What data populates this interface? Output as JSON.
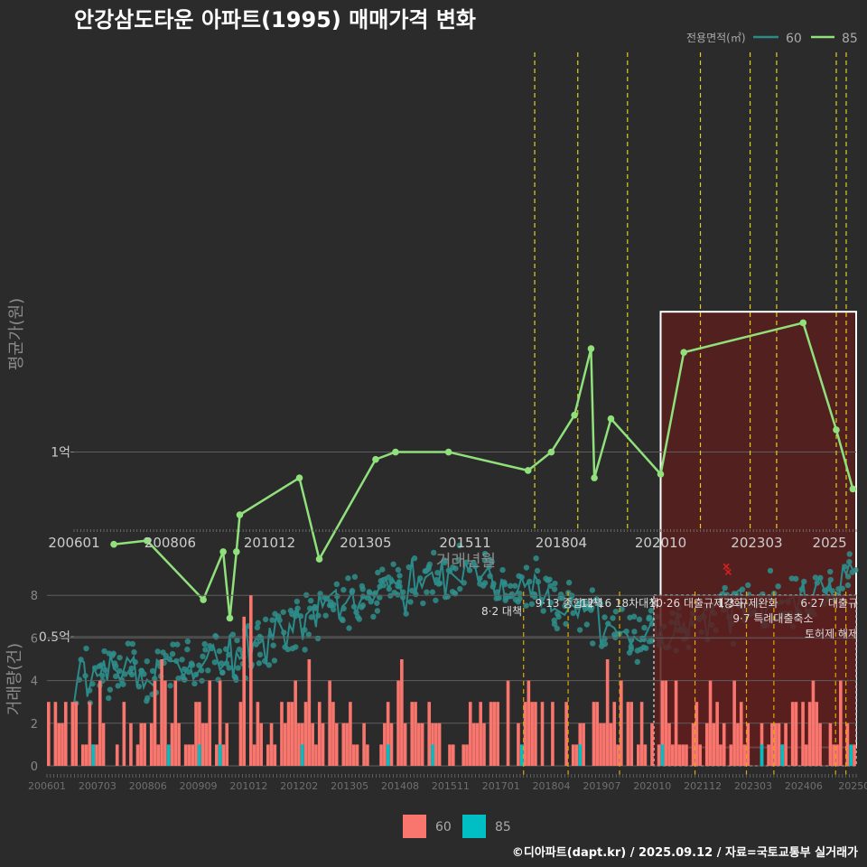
{
  "title": "안강삼도타운 아파트(1995) 매매가격 변화",
  "footer": "©디아파트(dapt.kr) / 2025.09.12 / 자료=국토교통부 실거래가",
  "colors": {
    "background": "#2b2b2b",
    "series60": "#2a8b8b",
    "series60_point": "#2f8f8c",
    "series85": "#90e07c",
    "bar60": "#f8766d",
    "bar85": "#00bfc4",
    "policy_line": "#e0d21a",
    "policy_line_bottom": "#e0a800",
    "highlight_fill": "#5a1e1e",
    "grid": "#5e5e5e"
  },
  "chart_data": [
    {
      "type": "line",
      "title": "안강삼도타운 아파트(1995) 매매가격 변화",
      "xlabel": "거래년월",
      "ylabel": "평균가(원)",
      "x_tick_labels": [
        "200601",
        "200806",
        "201012",
        "201305",
        "201511",
        "201804",
        "202010",
        "202303",
        "2025"
      ],
      "y_tick_labels": [
        "0.5억",
        "1억"
      ],
      "ylim": [
        1500,
        14000
      ],
      "xlim": [
        "2006-01",
        "2025-09"
      ],
      "legend": {
        "title": "전용면적(㎡)",
        "position": "top-right",
        "entries": [
          "60",
          "85"
        ]
      },
      "highlight_region": {
        "x_start": "2020-10",
        "x_end": "2025-09",
        "y_start": 2000,
        "y_end": 13800
      },
      "policy_dates": [
        "2017-08",
        "2018-09",
        "2019-12",
        "2021-10",
        "2023-01",
        "2023-09",
        "2025-03",
        "2025-06"
      ],
      "series": [
        {
          "name": "85",
          "x": [
            "2007-01",
            "2007-11",
            "2009-04",
            "2009-10",
            "2009-12",
            "2010-02",
            "2010-03",
            "2011-09",
            "2012-03",
            "2013-08",
            "2014-02",
            "2015-06",
            "2017-06",
            "2018-01",
            "2018-08",
            "2019-01",
            "2019-02",
            "2019-07",
            "2020-10",
            "2021-05",
            "2024-05",
            "2025-03",
            "2025-08"
          ],
          "values": [
            7500,
            7600,
            6000,
            7300,
            5500,
            7300,
            8300,
            9300,
            7100,
            9800,
            10000,
            10000,
            9500,
            10000,
            11000,
            12800,
            9300,
            10900,
            9400,
            12700,
            13500,
            10600,
            9000
          ]
        },
        {
          "name": "60",
          "x_range": [
            "2006-01",
            "2025-09"
          ],
          "values_summary": {
            "start": 3800,
            "2010": 4500,
            "2013": 6000,
            "2016": 6800,
            "2018": 6100,
            "2020": 5000,
            "2023": 5800,
            "2025": 6500
          }
        }
      ]
    },
    {
      "type": "bar",
      "ylabel": "거래량(건)",
      "y_tick_labels": [
        "0",
        "2",
        "4",
        "6",
        "8"
      ],
      "ylim": [
        0,
        8
      ],
      "x_tick_labels": [
        "200601",
        "200703",
        "200806",
        "200909",
        "201012",
        "201202",
        "201305",
        "201408",
        "201511",
        "201701",
        "201804",
        "201907",
        "202010",
        "202112",
        "202303",
        "202406",
        "20250"
      ],
      "legend": {
        "position": "bottom",
        "entries": [
          "60",
          "85"
        ]
      },
      "policy_labels": [
        {
          "date": "8·2",
          "text": "대책"
        },
        {
          "date": "9·13",
          "text": "종합대책"
        },
        {
          "date": "12·16",
          "text": "18차대책"
        },
        {
          "date": "10·26",
          "text": "대출규제강화"
        },
        {
          "date": "1·3",
          "text": "규제완화"
        },
        {
          "date": "9·7",
          "text": "특례대출축소"
        },
        {
          "date": "",
          "text": "토허제 해제"
        },
        {
          "date": "6·27",
          "text": "대출규"
        }
      ],
      "series": [
        {
          "name": "60",
          "max": 8,
          "typical": [
            1,
            4
          ]
        },
        {
          "name": "85",
          "max": 1,
          "typical": [
            0,
            1
          ]
        }
      ]
    }
  ]
}
